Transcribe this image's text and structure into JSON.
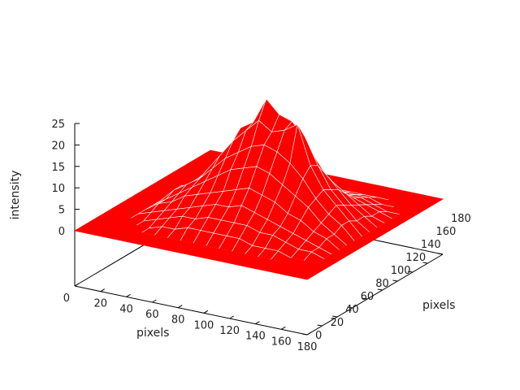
{
  "chart_data": {
    "type": "surface3d",
    "title": "",
    "xlabel": "pixels",
    "ylabel": "pixels",
    "zlabel": "intensity",
    "xlim": [
      0,
      180
    ],
    "ylim": [
      0,
      180
    ],
    "zlim": [
      0,
      25
    ],
    "xticks": [
      "0",
      "20",
      "40",
      "60",
      "80",
      "100",
      "120",
      "140",
      "160",
      "180"
    ],
    "yticks": [
      "0",
      "20",
      "40",
      "60",
      "80",
      "100",
      "120",
      "140",
      "160",
      "180"
    ],
    "zticks": [
      "0",
      "5",
      "10",
      "15",
      "20",
      "25"
    ],
    "surface_color": "#ff0000",
    "grid_step": 10,
    "z": [
      [
        0,
        0,
        0,
        0,
        0,
        0,
        0,
        0,
        0,
        0,
        0,
        0,
        0,
        0,
        0,
        0,
        0,
        0,
        0
      ],
      [
        0,
        0,
        0,
        0,
        0,
        0,
        0,
        0,
        0,
        0,
        0,
        0,
        0,
        0,
        0,
        0,
        0,
        0,
        0
      ],
      [
        0,
        0,
        0,
        0,
        0,
        0,
        0,
        0,
        0,
        0,
        0,
        0,
        0,
        0,
        0,
        0,
        0,
        0,
        0
      ],
      [
        0,
        0,
        0,
        0,
        0,
        1,
        2,
        2,
        3,
        3,
        2,
        2,
        1,
        1,
        0,
        0,
        0,
        0,
        0
      ],
      [
        0,
        0,
        0,
        0,
        1,
        2,
        3,
        4,
        5,
        4,
        5,
        3,
        2,
        1,
        1,
        0,
        0,
        0,
        0
      ],
      [
        0,
        0,
        0,
        1,
        2,
        3,
        5,
        6,
        7,
        8,
        6,
        5,
        4,
        3,
        1,
        1,
        0,
        0,
        0
      ],
      [
        0,
        0,
        0,
        1,
        3,
        4,
        6,
        8,
        10,
        12,
        9,
        8,
        6,
        4,
        2,
        1,
        0,
        0,
        0
      ],
      [
        0,
        0,
        0,
        2,
        3,
        5,
        7,
        10,
        13,
        16,
        18,
        12,
        8,
        5,
        3,
        1,
        0,
        0,
        0
      ],
      [
        0,
        0,
        0,
        2,
        4,
        6,
        8,
        12,
        15,
        19,
        20,
        15,
        10,
        6,
        3,
        2,
        0,
        0,
        0
      ],
      [
        0,
        0,
        0,
        2,
        4,
        6,
        9,
        13,
        17,
        22,
        26,
        18,
        11,
        7,
        4,
        2,
        0,
        0,
        0
      ],
      [
        0,
        0,
        0,
        2,
        4,
        7,
        10,
        14,
        18,
        20,
        23,
        17,
        12,
        7,
        4,
        2,
        0,
        0,
        0
      ],
      [
        0,
        0,
        0,
        2,
        4,
        6,
        9,
        13,
        17,
        21,
        22,
        16,
        10,
        6,
        3,
        2,
        0,
        0,
        0
      ],
      [
        0,
        0,
        0,
        1,
        3,
        5,
        8,
        11,
        15,
        23,
        19,
        14,
        9,
        5,
        3,
        1,
        0,
        0,
        0
      ],
      [
        0,
        0,
        0,
        1,
        3,
        4,
        6,
        9,
        12,
        14,
        13,
        10,
        7,
        4,
        2,
        1,
        0,
        0,
        0
      ],
      [
        0,
        0,
        0,
        1,
        2,
        3,
        5,
        7,
        8,
        9,
        8,
        7,
        5,
        3,
        2,
        1,
        0,
        0,
        0
      ],
      [
        0,
        0,
        0,
        0,
        1,
        2,
        3,
        4,
        5,
        6,
        5,
        4,
        3,
        2,
        1,
        0,
        0,
        0,
        0
      ],
      [
        0,
        0,
        0,
        0,
        1,
        1,
        2,
        2,
        3,
        3,
        2,
        2,
        1,
        1,
        0,
        0,
        0,
        0,
        0
      ],
      [
        0,
        0,
        0,
        0,
        0,
        0,
        0,
        0,
        0,
        0,
        0,
        0,
        0,
        0,
        0,
        0,
        0,
        0,
        0
      ],
      [
        0,
        0,
        0,
        0,
        0,
        0,
        0,
        0,
        0,
        0,
        0,
        0,
        0,
        0,
        0,
        0,
        0,
        0,
        0
      ]
    ]
  }
}
